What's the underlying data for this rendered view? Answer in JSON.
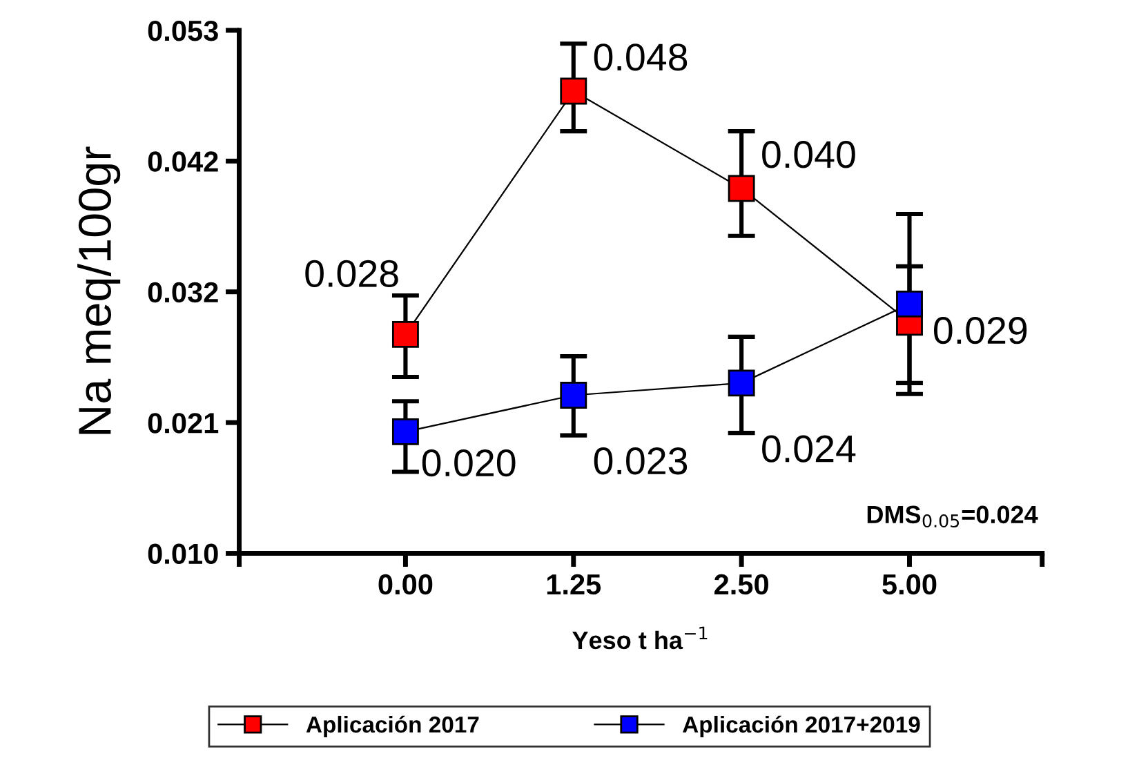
{
  "chart_data": {
    "type": "line",
    "categories": [
      "0.00",
      "1.25",
      "2.50",
      "5.00"
    ],
    "ylabel": "Na meq/100gr",
    "xlabel": "Yeso t ha$^{−1}$",
    "ylim": [
      0.01,
      0.053
    ],
    "yticks": [
      {
        "value": 0.01,
        "label": "0.010"
      },
      {
        "value": 0.02075,
        "label": "0.021"
      },
      {
        "value": 0.0315,
        "label": "0.032"
      },
      {
        "value": 0.04225,
        "label": "0.042"
      },
      {
        "value": 0.053,
        "label": "0.053"
      }
    ],
    "series": [
      {
        "name": "Aplicación 2017",
        "color": "#ff0000",
        "values": [
          0.028,
          0.048,
          0.04,
          0.029
        ],
        "errors": [
          [
            0.0245,
            0.0312
          ],
          [
            0.0447,
            0.0519
          ],
          [
            0.0361,
            0.0447
          ],
          [
            0.024,
            0.0336
          ]
        ],
        "value_labels": [
          "0.028",
          "0.048",
          "0.040",
          "0.029"
        ]
      },
      {
        "name": "Aplicación 2017+2019",
        "color": "#0000ff",
        "values": [
          0.02,
          0.023,
          0.024,
          0.0305
        ],
        "errors": [
          [
            0.0167,
            0.0225
          ],
          [
            0.0197,
            0.0262
          ],
          [
            0.0199,
            0.0278
          ],
          [
            0.0231,
            0.0379
          ]
        ],
        "value_labels": [
          "0.020",
          "0.023",
          "0.024",
          null
        ]
      }
    ],
    "marker": "square",
    "line_style": "solid",
    "grid": false,
    "legend": "bottom",
    "annotations": [
      "DMS$_{0.05}$=0.024"
    ]
  }
}
